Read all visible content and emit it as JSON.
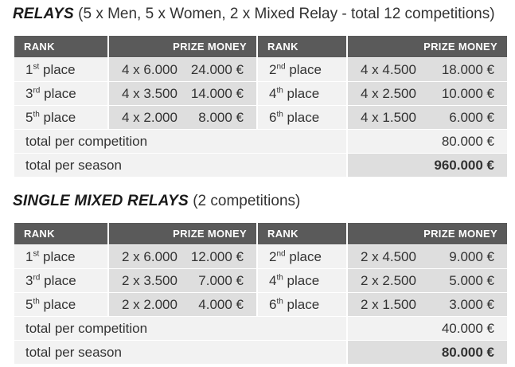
{
  "relays": {
    "title_bold": "RELAYS",
    "title_rest": "(5 x Men, 5 x Women, 2 x Mixed Relay - total 12 competitions)",
    "headers": {
      "rank": "RANK",
      "prize": "PRIZE MONEY"
    },
    "rows": [
      {
        "left": {
          "num": "1",
          "suffix": "st",
          "word": "place",
          "calc": "4 x 6.000",
          "amount": "24.000 €"
        },
        "right": {
          "num": "2",
          "suffix": "nd",
          "word": "place",
          "calc": "4 x 4.500",
          "amount": "18.000 €"
        }
      },
      {
        "left": {
          "num": "3",
          "suffix": "rd",
          "word": "place",
          "calc": "4 x 3.500",
          "amount": "14.000 €"
        },
        "right": {
          "num": "4",
          "suffix": "th",
          "word": "place",
          "calc": "4 x 2.500",
          "amount": "10.000 €"
        }
      },
      {
        "left": {
          "num": "5",
          "suffix": "th",
          "word": "place",
          "calc": "4 x 2.000",
          "amount": "8.000 €"
        },
        "right": {
          "num": "6",
          "suffix": "th",
          "word": "place",
          "calc": "4 x 1.500",
          "amount": "6.000 €"
        }
      }
    ],
    "total_competition": {
      "label": "total per competition",
      "value": "80.000 €"
    },
    "total_season": {
      "label": "total per season",
      "value": "960.000 €"
    }
  },
  "single_mixed": {
    "title_bold": "SINGLE MIXED RELAYS",
    "title_rest": "(2 competitions)",
    "headers": {
      "rank": "RANK",
      "prize": "PRIZE MONEY"
    },
    "rows": [
      {
        "left": {
          "num": "1",
          "suffix": "st",
          "word": "place",
          "calc": "2 x 6.000",
          "amount": "12.000 €"
        },
        "right": {
          "num": "2",
          "suffix": "nd",
          "word": "place",
          "calc": "2 x 4.500",
          "amount": "9.000 €"
        }
      },
      {
        "left": {
          "num": "3",
          "suffix": "rd",
          "word": "place",
          "calc": "2 x 3.500",
          "amount": "7.000 €"
        },
        "right": {
          "num": "4",
          "suffix": "th",
          "word": "place",
          "calc": "2 x 2.500",
          "amount": "5.000 €"
        }
      },
      {
        "left": {
          "num": "5",
          "suffix": "th",
          "word": "place",
          "calc": "2 x 2.000",
          "amount": "4.000 €"
        },
        "right": {
          "num": "6",
          "suffix": "th",
          "word": "place",
          "calc": "2 x 1.500",
          "amount": "3.000 €"
        }
      }
    ],
    "total_competition": {
      "label": "total per competition",
      "value": "40.000 €"
    },
    "total_season": {
      "label": "total per season",
      "value": "80.000 €"
    }
  }
}
